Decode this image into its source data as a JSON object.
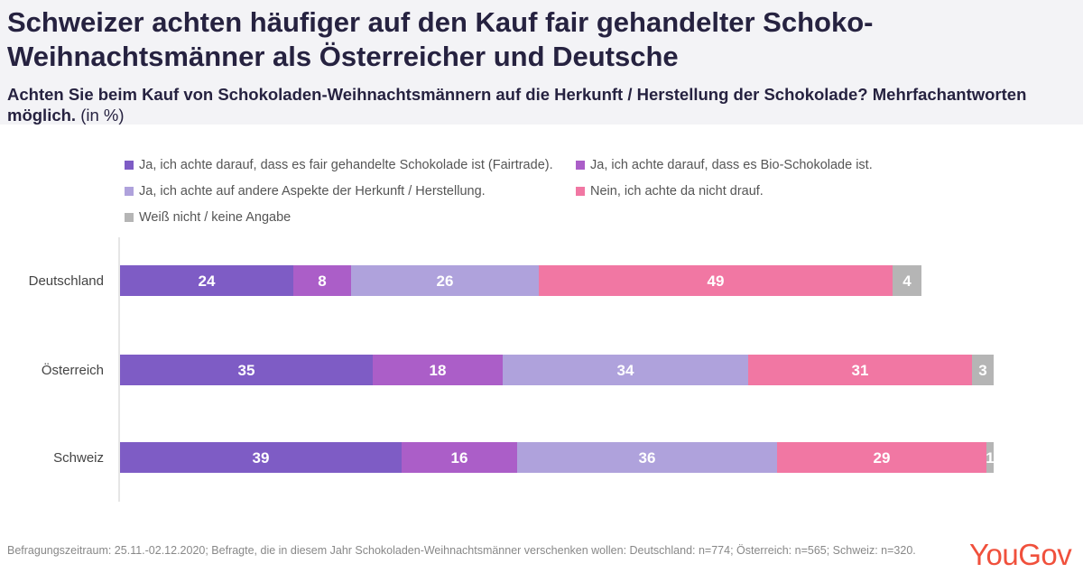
{
  "title": "Schweizer achten häufiger auf den Kauf fair gehandelter Schoko-Weihnachtsmänner als Österreicher und Deutsche",
  "subtitle": {
    "question": "Achten Sie beim Kauf von Schokoladen-Weihnachtsmännern auf die Herkunft / Herstellung der Schokolade?  Mehrfachantworten möglich.",
    "unit": "(in %)"
  },
  "footnote": "Befragungszeitraum: 25.11.-02.12.2020; Befragte, die in diesem Jahr Schokoladen-Weihnachtsmänner verschenken wollen: Deutschland: n=774; Österreich: n=565; Schweiz: n=320.",
  "logo": "YouGov",
  "chart_data": {
    "type": "bar",
    "orientation": "horizontal",
    "stacked": true,
    "categories": [
      "Deutschland",
      "Österreich",
      "Schweiz"
    ],
    "series": [
      {
        "name": "Ja, ich achte darauf, dass es fair gehandelte Schokolade ist (Fairtrade).",
        "color": "#7e5cc5",
        "values": [
          24,
          35,
          39
        ]
      },
      {
        "name": "Ja, ich achte darauf, dass es Bio-Schokolade ist.",
        "color": "#ab5ec8",
        "values": [
          8,
          18,
          16
        ]
      },
      {
        "name": "Ja, ich achte auf andere Aspekte der Herkunft / Herstellung.",
        "color": "#afa2dc",
        "values": [
          26,
          34,
          36
        ]
      },
      {
        "name": "Nein, ich achte da nicht drauf.",
        "color": "#f177a3",
        "values": [
          49,
          31,
          29
        ]
      },
      {
        "name": "Weiß nicht / keine Angabe",
        "color": "#b5b5b5",
        "values": [
          4,
          3,
          1
        ]
      }
    ],
    "legend_position": "top",
    "grid": false,
    "axis_labels_visible": false
  }
}
